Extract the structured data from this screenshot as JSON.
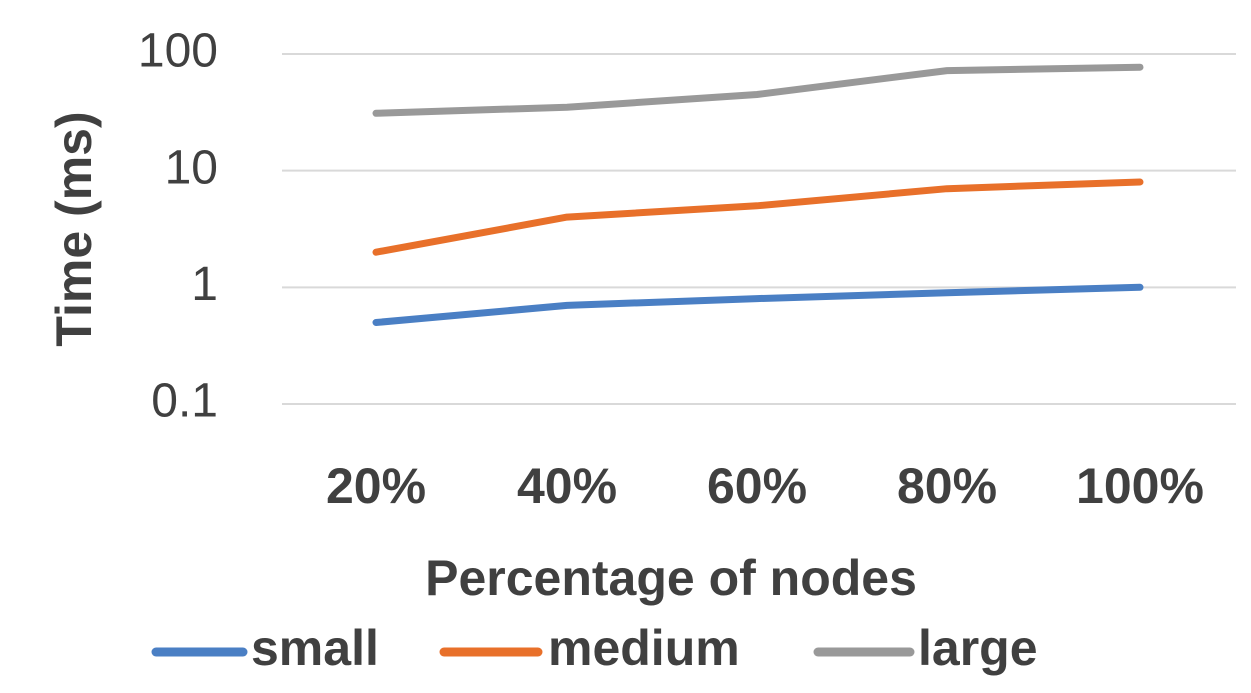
{
  "chart_data": {
    "type": "line",
    "xlabel": "Percentage of nodes",
    "ylabel": "Time (ms)",
    "yscale": "log",
    "ylim": [
      0.1,
      100
    ],
    "yticks": [
      "0.1",
      "1",
      "10",
      "100"
    ],
    "ytick_values": [
      0.1,
      1,
      10,
      100
    ],
    "grid": true,
    "legend_position": "bottom",
    "categories": [
      "20%",
      "40%",
      "60%",
      "80%",
      "100%"
    ],
    "series": [
      {
        "name": "small",
        "color": "#4a7fc4",
        "values": [
          0.5,
          0.7,
          0.8,
          0.9,
          1.0
        ]
      },
      {
        "name": "medium",
        "color": "#e8702a",
        "values": [
          2.0,
          4.0,
          5.0,
          7.0,
          8.0
        ]
      },
      {
        "name": "large",
        "color": "#999999",
        "values": [
          31,
          35,
          45,
          72,
          77
        ]
      }
    ]
  }
}
